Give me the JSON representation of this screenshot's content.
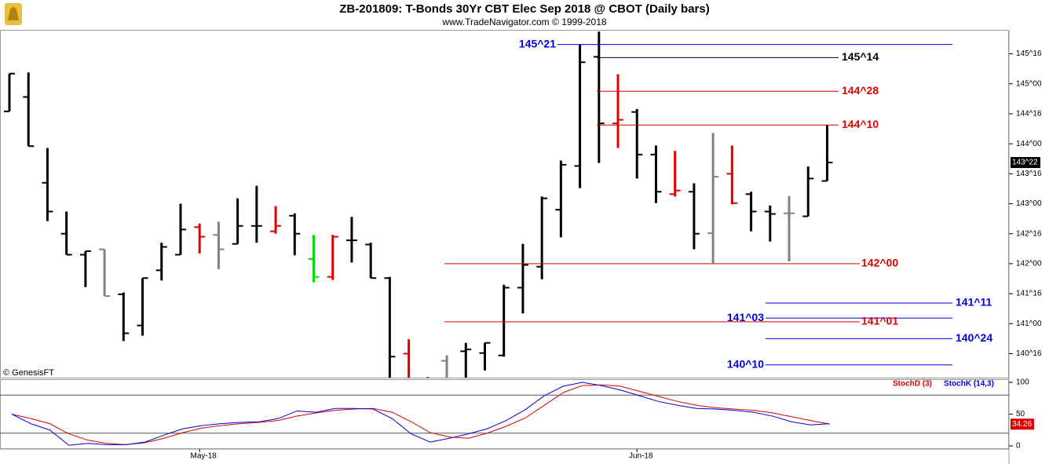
{
  "chart_data": [
    {
      "type": "ohlc",
      "title": "ZB-201809:  T-Bonds 30Yr CBT Elec Sep 2018 @ CBOT  (Daily bars)",
      "subtitle": "www.TradeNavigator.com © 1999-2018",
      "source": "© GenesisFT",
      "categories": [
        null,
        null,
        null,
        null,
        null,
        null,
        null,
        null,
        null,
        null,
        "May-18",
        null,
        null,
        null,
        null,
        null,
        null,
        null,
        null,
        null,
        null,
        null,
        null,
        null,
        null,
        null,
        null,
        null,
        null,
        null,
        null,
        null,
        null,
        "Jun-18",
        null,
        null,
        null,
        null,
        null,
        null,
        null,
        null,
        null,
        null
      ],
      "open": [
        144.54,
        144.78,
        143.35,
        142.5,
        142.15,
        142.24,
        141.49,
        140.97,
        141.89,
        142.15,
        142.61,
        142.48,
        142.33,
        142.63,
        142.54,
        142.8,
        142.08,
        141.78,
        142.39,
        142.32,
        141.76,
        140.5,
        140.05,
        140.38,
        140.54,
        140.51,
        140.47,
        141.6,
        141.95,
        142.9,
        143.63,
        145.45,
        144.34,
        144.53,
        143.82,
        143.16,
        143.2,
        142.51,
        143.5,
        143.16,
        142.87,
        142.84,
        142.79,
        143.38
      ],
      "high": [
        145.17,
        145.19,
        143.93,
        142.87,
        142.21,
        142.24,
        141.52,
        141.76,
        142.35,
        143.0,
        142.67,
        142.7,
        143.09,
        143.3,
        142.96,
        142.84,
        142.48,
        142.48,
        142.78,
        142.35,
        141.78,
        140.74,
        140.11,
        140.47,
        140.68,
        140.68,
        141.65,
        142.33,
        143.12,
        143.72,
        145.66,
        145.87,
        145.16,
        144.58,
        143.97,
        143.88,
        143.34,
        144.18,
        143.97,
        143.2,
        142.97,
        143.13,
        143.62,
        144.31
      ],
      "low": [
        144.54,
        143.96,
        142.71,
        142.15,
        141.61,
        141.46,
        140.71,
        140.8,
        141.72,
        142.15,
        142.17,
        141.91,
        142.33,
        142.35,
        142.5,
        142.14,
        141.69,
        141.73,
        142.02,
        141.76,
        140.0,
        140.0,
        140.0,
        140.0,
        140.0,
        140.22,
        140.45,
        141.17,
        141.74,
        142.44,
        143.26,
        143.68,
        143.93,
        143.42,
        143.01,
        143.12,
        142.24,
        142.01,
        142.99,
        142.54,
        142.37,
        142.04,
        142.79,
        143.38
      ],
      "close": [
        145.17,
        143.96,
        142.87,
        142.15,
        142.21,
        141.46,
        140.84,
        141.76,
        142.28,
        142.57,
        142.45,
        142.24,
        142.63,
        142.63,
        142.63,
        142.5,
        141.78,
        142.45,
        142.39,
        141.76,
        140.45,
        140.05,
        140.05,
        140.05,
        140.57,
        140.68,
        141.6,
        141.98,
        143.09,
        143.65,
        145.36,
        144.34,
        144.4,
        143.82,
        143.2,
        143.22,
        142.5,
        143.45,
        143.01,
        142.87,
        142.83,
        142.84,
        143.42,
        143.6875
      ],
      "colors": [
        "#000000",
        "#000000",
        "#000000",
        "#000000",
        "#000000",
        "#808080",
        "#000000",
        "#000000",
        "#000000",
        "#000000",
        "#e00000",
        "#808080",
        "#000000",
        "#000000",
        "#e00000",
        "#000000",
        "#00dd00",
        "#e00000",
        "#000000",
        "#000000",
        "#000000",
        "#e00000",
        "#000000",
        "#808080",
        "#000000",
        "#000000",
        "#000000",
        "#000000",
        "#000000",
        "#000000",
        "#000000",
        "#000000",
        "#e00000",
        "#000000",
        "#000000",
        "#e00000",
        "#000000",
        "#808080",
        "#e00000",
        "#000000",
        "#000000",
        "#808080",
        "#000000",
        "#000000"
      ],
      "ylim": [
        140.1,
        145.9
      ],
      "yticks": [
        {
          "value": 145.5,
          "label": "145^16"
        },
        {
          "value": 145,
          "label": "145^00"
        },
        {
          "value": 144.5,
          "label": "144^16"
        },
        {
          "value": 144,
          "label": "144^00"
        },
        {
          "value": 143.5,
          "label": "143^16"
        },
        {
          "value": 143,
          "label": "143^00"
        },
        {
          "value": 142.5,
          "label": "142^16"
        },
        {
          "value": 142,
          "label": "142^00"
        },
        {
          "value": 141.5,
          "label": "141^16"
        },
        {
          "value": 141,
          "label": "141^00"
        },
        {
          "value": 140.5,
          "label": "140^16"
        }
      ],
      "last": {
        "value": 143.6875,
        "label": "143^22"
      },
      "levels": [
        {
          "label": "145^21",
          "value": 145.65625,
          "color": "#0000e0"
        },
        {
          "label": "145^14",
          "value": 145.4375,
          "color": "#000000"
        },
        {
          "label": "144^28",
          "value": 144.875,
          "color": "#e00000"
        },
        {
          "label": "144^10",
          "value": 144.3125,
          "color": "#e00000"
        },
        {
          "label": "142^00",
          "value": 142,
          "color": "#e00000"
        },
        {
          "label": "141^11",
          "value": 141.34375,
          "color": "#0000e0"
        },
        {
          "label": "141^03",
          "value": 141.09375,
          "color": "#0000e0"
        },
        {
          "label": "141^01",
          "value": 141.03125,
          "color": "#e00000"
        },
        {
          "label": "140^24",
          "value": 140.75,
          "color": "#0000e0"
        },
        {
          "label": "140^10",
          "value": 140.3125,
          "color": "#0000e0"
        }
      ]
    },
    {
      "type": "line",
      "series": [
        {
          "name": "StochD (3)",
          "color": "#e00000",
          "values": [
            50,
            43,
            35,
            19,
            9,
            4,
            2,
            5,
            12,
            21,
            28,
            32,
            35,
            37,
            40,
            47,
            52,
            56,
            58,
            59,
            53,
            38,
            21,
            14,
            12,
            20,
            31,
            44,
            64,
            84,
            95,
            96,
            94,
            86,
            78,
            70,
            64,
            60,
            58,
            56,
            52,
            46,
            40,
            34.26
          ]
        },
        {
          "name": "StochK (14,3)",
          "color": "#0000e0",
          "values": [
            50,
            35,
            25,
            1,
            4,
            2,
            2,
            6,
            17,
            27,
            32,
            35,
            37,
            38,
            43,
            55,
            53,
            59,
            59,
            58,
            43,
            19,
            6,
            12,
            19,
            27,
            40,
            57,
            79,
            94,
            100,
            95,
            88,
            79,
            70,
            64,
            59,
            58,
            56,
            53,
            47,
            38,
            33,
            35
          ]
        }
      ],
      "ylim": [
        -5,
        105
      ],
      "yticks": [
        100,
        50,
        0
      ],
      "hlines": [
        80,
        20
      ]
    }
  ]
}
